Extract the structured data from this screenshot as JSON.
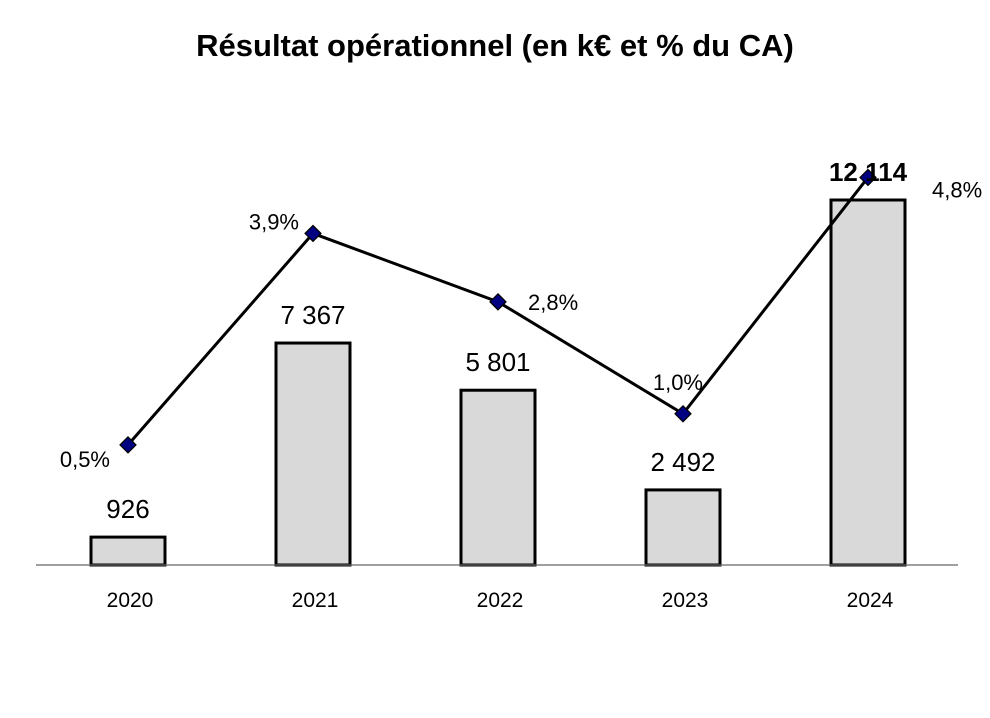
{
  "chart_data": {
    "type": "bar",
    "title": "Résultat opérationnel (en k€ et % du CA)",
    "categories": [
      "2020",
      "2021",
      "2022",
      "2023",
      "2024"
    ],
    "series": [
      {
        "kind": "bar",
        "values": [
          926,
          7367,
          5801,
          2492,
          12114
        ],
        "labels": [
          "926",
          "7 367",
          "5 801",
          "2 492",
          "12 114"
        ],
        "bold_labels": [
          false,
          false,
          false,
          false,
          true
        ],
        "color": "#d9d9d9"
      },
      {
        "kind": "line",
        "values": [
          0.5,
          3.9,
          2.8,
          1.0,
          4.8
        ],
        "labels": [
          "0,5%",
          "3,9%",
          "2,8%",
          "1,0%",
          "4,8%"
        ],
        "marker": "diamond",
        "marker_color": "#000080",
        "line_color": "#000000"
      }
    ],
    "ylim_bars": [
      0,
      12500
    ],
    "ylim_line": [
      0,
      5.5
    ],
    "grid": false,
    "legend": "none"
  }
}
